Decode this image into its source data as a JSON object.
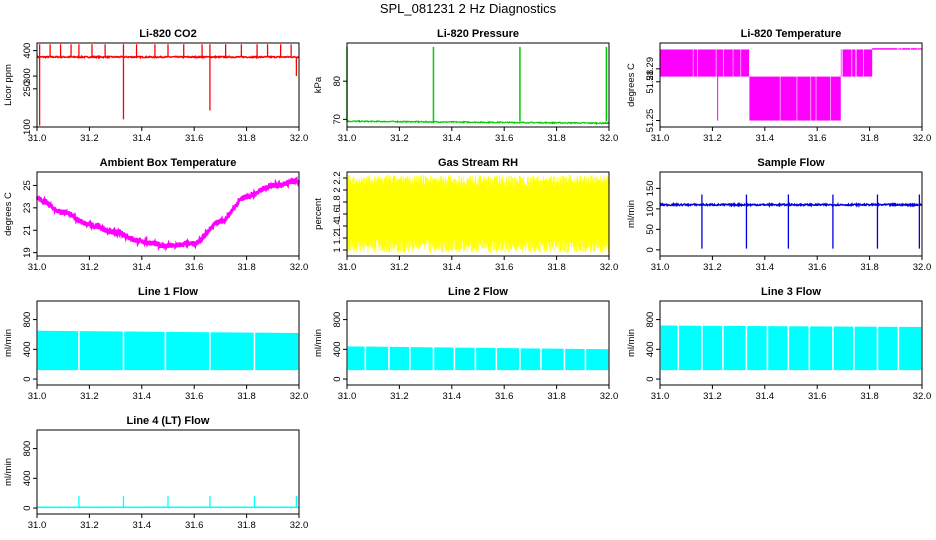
{
  "figure_title": "SPL_081231  2 Hz Diagnostics",
  "chart_data": [
    {
      "id": "co2",
      "type": "line",
      "title": "Li-820 CO2",
      "ylabel": "Licor ppm",
      "xlim": [
        31.0,
        32.0
      ],
      "ylim": [
        100,
        430
      ],
      "yticks": [
        100,
        250,
        300,
        400
      ],
      "xticks": [
        31.0,
        31.2,
        31.4,
        31.6,
        31.8,
        32.0
      ],
      "color": "#ff0000",
      "pattern": "spikes",
      "base": 375,
      "noise": 5,
      "spikes_up": [
        31.01,
        31.05,
        31.09,
        31.13,
        31.16,
        31.21,
        31.26,
        31.33,
        31.38,
        31.45,
        31.5,
        31.56,
        31.63,
        31.66,
        31.72,
        31.78,
        31.84,
        31.88,
        31.93,
        31.97
      ],
      "spikes_up_to": 425,
      "spikes_down": [
        31.01,
        31.33,
        31.66,
        31.99
      ],
      "spikes_down_to": [
        105,
        130,
        165,
        300
      ]
    },
    {
      "id": "pressure",
      "type": "line",
      "title": "Li-820 Pressure",
      "ylabel": "kPa",
      "xlim": [
        31.0,
        32.0
      ],
      "ylim": [
        68,
        90
      ],
      "yticks": [
        70,
        80
      ],
      "xticks": [
        31.0,
        31.2,
        31.4,
        31.6,
        31.8,
        32.0
      ],
      "color": "#00cc00",
      "pattern": "flat_spikes",
      "base_start": 69.5,
      "base_end": 69.0,
      "spikes_up": [
        31.0,
        31.33,
        31.66,
        31.99
      ],
      "spikes_up_to": 89
    },
    {
      "id": "temperature",
      "type": "line",
      "title": "Li-820 Temperature",
      "ylabel": "degrees C",
      "xlim": [
        31.0,
        32.0
      ],
      "ylim": [
        51.245,
        51.31
      ],
      "yticks": [
        51.25,
        51.28,
        51.29
      ],
      "xticks": [
        31.0,
        31.2,
        31.4,
        31.6,
        31.8,
        32.0
      ],
      "color": "#ff00ff",
      "pattern": "bands",
      "bands": [
        {
          "from": 31.0,
          "to": 31.34,
          "low": 51.284,
          "high": 51.305
        },
        {
          "from": 31.34,
          "to": 31.69,
          "low": 51.25,
          "high": 51.284
        },
        {
          "from": 31.69,
          "to": 31.81,
          "low": 51.284,
          "high": 51.305
        },
        {
          "from": 31.81,
          "to": 32.0,
          "low": 51.305,
          "high": 51.306
        }
      ]
    },
    {
      "id": "ambient",
      "type": "line",
      "title": "Ambient Box Temperature",
      "ylabel": "degrees C",
      "xlim": [
        31.0,
        32.0
      ],
      "ylim": [
        18.7,
        26.2
      ],
      "yticks": [
        19,
        21,
        23,
        25
      ],
      "xticks": [
        31.0,
        31.2,
        31.4,
        31.6,
        31.8,
        32.0
      ],
      "color": "#ff00ff",
      "pattern": "smooth",
      "x": [
        31.0,
        31.1,
        31.2,
        31.3,
        31.4,
        31.5,
        31.6,
        31.7,
        31.8,
        31.9,
        32.0
      ],
      "y": [
        23.8,
        22.6,
        21.5,
        20.8,
        20.0,
        19.6,
        19.8,
        21.8,
        24.0,
        25.0,
        25.4
      ],
      "noise": 0.5
    },
    {
      "id": "rh",
      "type": "line",
      "title": "Gas Stream RH",
      "ylabel": "percent",
      "xlim": [
        31.0,
        32.0
      ],
      "ylim": [
        0.9,
        2.3
      ],
      "yticks": [
        1.0,
        1.2,
        1.4,
        1.6,
        1.8,
        2.0,
        2.2
      ],
      "xticks": [
        31.0,
        31.2,
        31.4,
        31.6,
        31.8,
        32.0
      ],
      "color": "#ffff00",
      "pattern": "noisy_band",
      "core_low": 1.2,
      "core_high": 2.05,
      "min": 0.95,
      "max": 2.25
    },
    {
      "id": "sample",
      "type": "line",
      "title": "Sample Flow",
      "ylabel": "ml/min",
      "xlim": [
        31.0,
        32.0
      ],
      "ylim": [
        -15,
        190
      ],
      "yticks": [
        0,
        50,
        100,
        150
      ],
      "xticks": [
        31.0,
        31.2,
        31.4,
        31.6,
        31.8,
        32.0
      ],
      "color": "#0000dd",
      "pattern": "spikes",
      "base": 110,
      "noise": 4,
      "spikes_up": [
        31.16,
        31.33,
        31.49,
        31.66,
        31.83,
        31.99
      ],
      "spikes_up_to": 135,
      "spikes_down": [
        31.16,
        31.33,
        31.49,
        31.66,
        31.83,
        31.99
      ],
      "spikes_down_to": [
        3,
        3,
        3,
        3,
        3,
        3
      ]
    },
    {
      "id": "line1",
      "type": "area",
      "title": "Line 1 Flow",
      "ylabel": "ml/min",
      "xlim": [
        31.0,
        32.0
      ],
      "ylim": [
        -80,
        1050
      ],
      "yticks": [
        0,
        400,
        800
      ],
      "xticks": [
        31.0,
        31.2,
        31.4,
        31.6,
        31.8,
        32.0
      ],
      "color": "#00ffff",
      "pattern": "block",
      "low": 120,
      "high_start": 650,
      "high_end": 620,
      "gaps": [
        31.16,
        31.33,
        31.49,
        31.66,
        31.83
      ]
    },
    {
      "id": "line2",
      "type": "area",
      "title": "Line 2 Flow",
      "ylabel": "ml/min",
      "xlim": [
        31.0,
        32.0
      ],
      "ylim": [
        -80,
        1050
      ],
      "yticks": [
        0,
        400,
        800
      ],
      "xticks": [
        31.0,
        31.2,
        31.4,
        31.6,
        31.8,
        32.0
      ],
      "color": "#00ffff",
      "pattern": "block",
      "low": 120,
      "high_start": 440,
      "high_end": 400,
      "gaps": [
        31.07,
        31.16,
        31.24,
        31.33,
        31.41,
        31.49,
        31.57,
        31.66,
        31.74,
        31.83,
        31.91
      ]
    },
    {
      "id": "line3",
      "type": "area",
      "title": "Line 3 Flow",
      "ylabel": "ml/min",
      "xlim": [
        31.0,
        32.0
      ],
      "ylim": [
        -80,
        1050
      ],
      "yticks": [
        0,
        400,
        800
      ],
      "xticks": [
        31.0,
        31.2,
        31.4,
        31.6,
        31.8,
        32.0
      ],
      "color": "#00ffff",
      "pattern": "block",
      "low": 120,
      "high_start": 720,
      "high_end": 700,
      "gaps": [
        31.07,
        31.16,
        31.24,
        31.33,
        31.41,
        31.49,
        31.57,
        31.66,
        31.74,
        31.83,
        31.91
      ]
    },
    {
      "id": "line4",
      "type": "line",
      "title": "Line 4 (LT) Flow",
      "ylabel": "ml/min",
      "xlim": [
        31.0,
        32.0
      ],
      "ylim": [
        -80,
        1050
      ],
      "yticks": [
        0,
        400,
        800
      ],
      "xticks": [
        31.0,
        31.2,
        31.4,
        31.6,
        31.8,
        32.0
      ],
      "color": "#00ffff",
      "pattern": "spikes",
      "base": 10,
      "noise": 4,
      "spikes_up": [
        31.16,
        31.33,
        31.5,
        31.66,
        31.83,
        31.99
      ],
      "spikes_up_to": 160,
      "spikes_down": [],
      "spikes_down_to": []
    }
  ]
}
